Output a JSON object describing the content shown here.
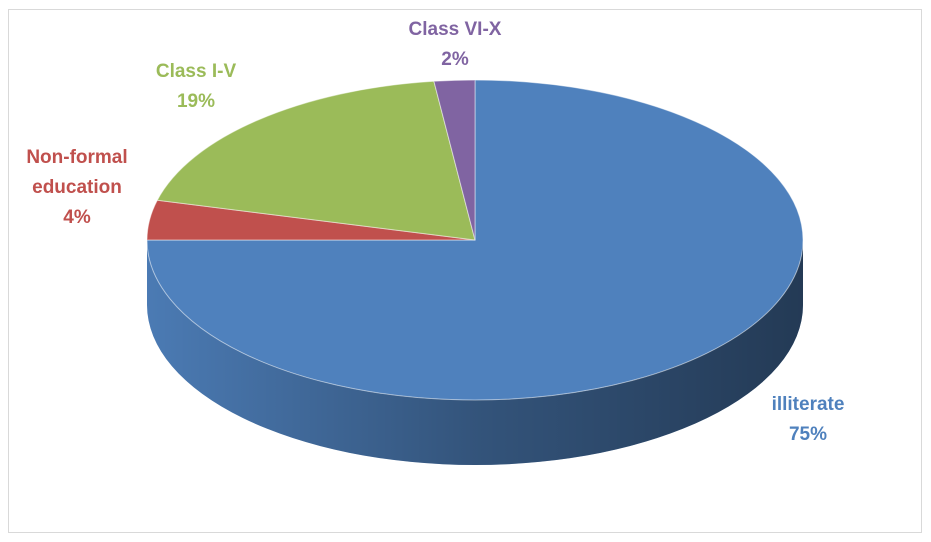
{
  "chart_data": {
    "type": "pie",
    "categories": [
      "illiterate",
      "Non-formal education",
      "Class I-V",
      "Class VI-X"
    ],
    "values": [
      75,
      4,
      19,
      2
    ],
    "value_labels": [
      "75%",
      "4%",
      "19%",
      "2%"
    ],
    "colors": [
      "#4f81bd",
      "#c0504d",
      "#9bbb59",
      "#8064a2"
    ],
    "three_d": true
  }
}
